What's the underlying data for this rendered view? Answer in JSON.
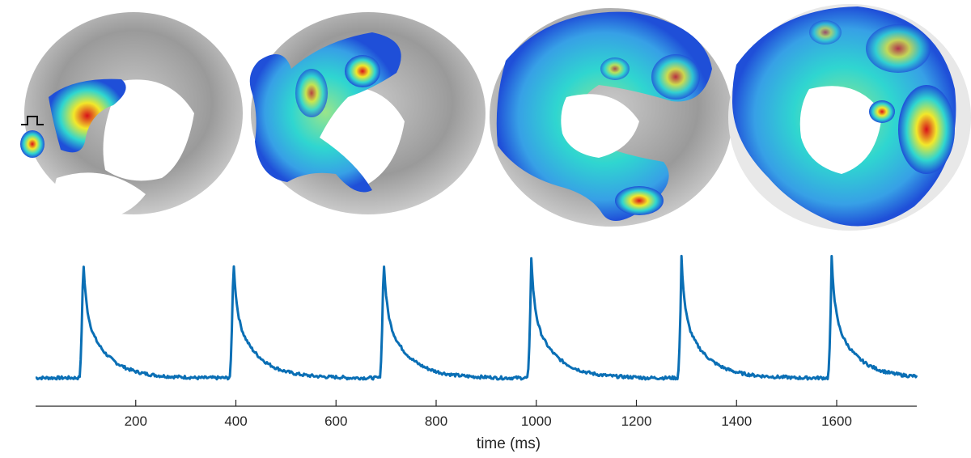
{
  "colors": {
    "trace": "#0a6fb5",
    "axis": "#262626",
    "heart_gray": "#8f8f8f",
    "map_low": "#1f4fd8",
    "map_mid": "#2fd6d0",
    "map_high": "#f2e82a",
    "map_peak": "#d8111a"
  },
  "activation_maps": {
    "count": 4,
    "stimulus_marker": "pulse-icon"
  },
  "chart_data": {
    "type": "line",
    "title": "",
    "xlabel": "time (ms)",
    "ylabel": "",
    "xlim": [
      0,
      1760
    ],
    "ylim": [
      0,
      1
    ],
    "xticks": [
      200,
      400,
      600,
      800,
      1000,
      1200,
      1400,
      1600
    ],
    "xtick_labels": [
      "200",
      "400",
      "600",
      "800",
      "1000",
      "1200",
      "1400",
      "1600"
    ],
    "grid": false,
    "series": [
      {
        "name": "",
        "beat_times_ms": [
          95,
          395,
          695,
          990,
          1290,
          1590
        ],
        "baseline": 0.04,
        "peak": 1.0,
        "x": [
          0,
          80,
          88,
          95,
          110,
          130,
          160,
          200,
          260,
          340,
          380,
          388,
          395,
          410,
          430,
          460,
          500,
          560,
          640,
          680,
          688,
          695,
          710,
          730,
          760,
          800,
          860,
          940,
          975,
          983,
          990,
          1005,
          1025,
          1055,
          1095,
          1155,
          1240,
          1275,
          1283,
          1290,
          1305,
          1325,
          1355,
          1395,
          1455,
          1540,
          1575,
          1583,
          1590,
          1605,
          1625,
          1655,
          1695,
          1760
        ],
        "y": [
          0.04,
          0.05,
          0.4,
          1.0,
          0.62,
          0.42,
          0.2,
          0.08,
          0.05,
          0.04,
          0.05,
          0.4,
          0.95,
          0.6,
          0.42,
          0.2,
          0.08,
          0.05,
          0.04,
          0.05,
          0.4,
          0.97,
          0.6,
          0.42,
          0.2,
          0.08,
          0.05,
          0.04,
          0.05,
          0.4,
          0.93,
          0.6,
          0.42,
          0.2,
          0.08,
          0.05,
          0.04,
          0.05,
          0.4,
          0.93,
          0.6,
          0.42,
          0.2,
          0.08,
          0.05,
          0.04,
          0.05,
          0.4,
          0.98,
          0.6,
          0.42,
          0.2,
          0.08,
          0.04
        ]
      }
    ]
  }
}
